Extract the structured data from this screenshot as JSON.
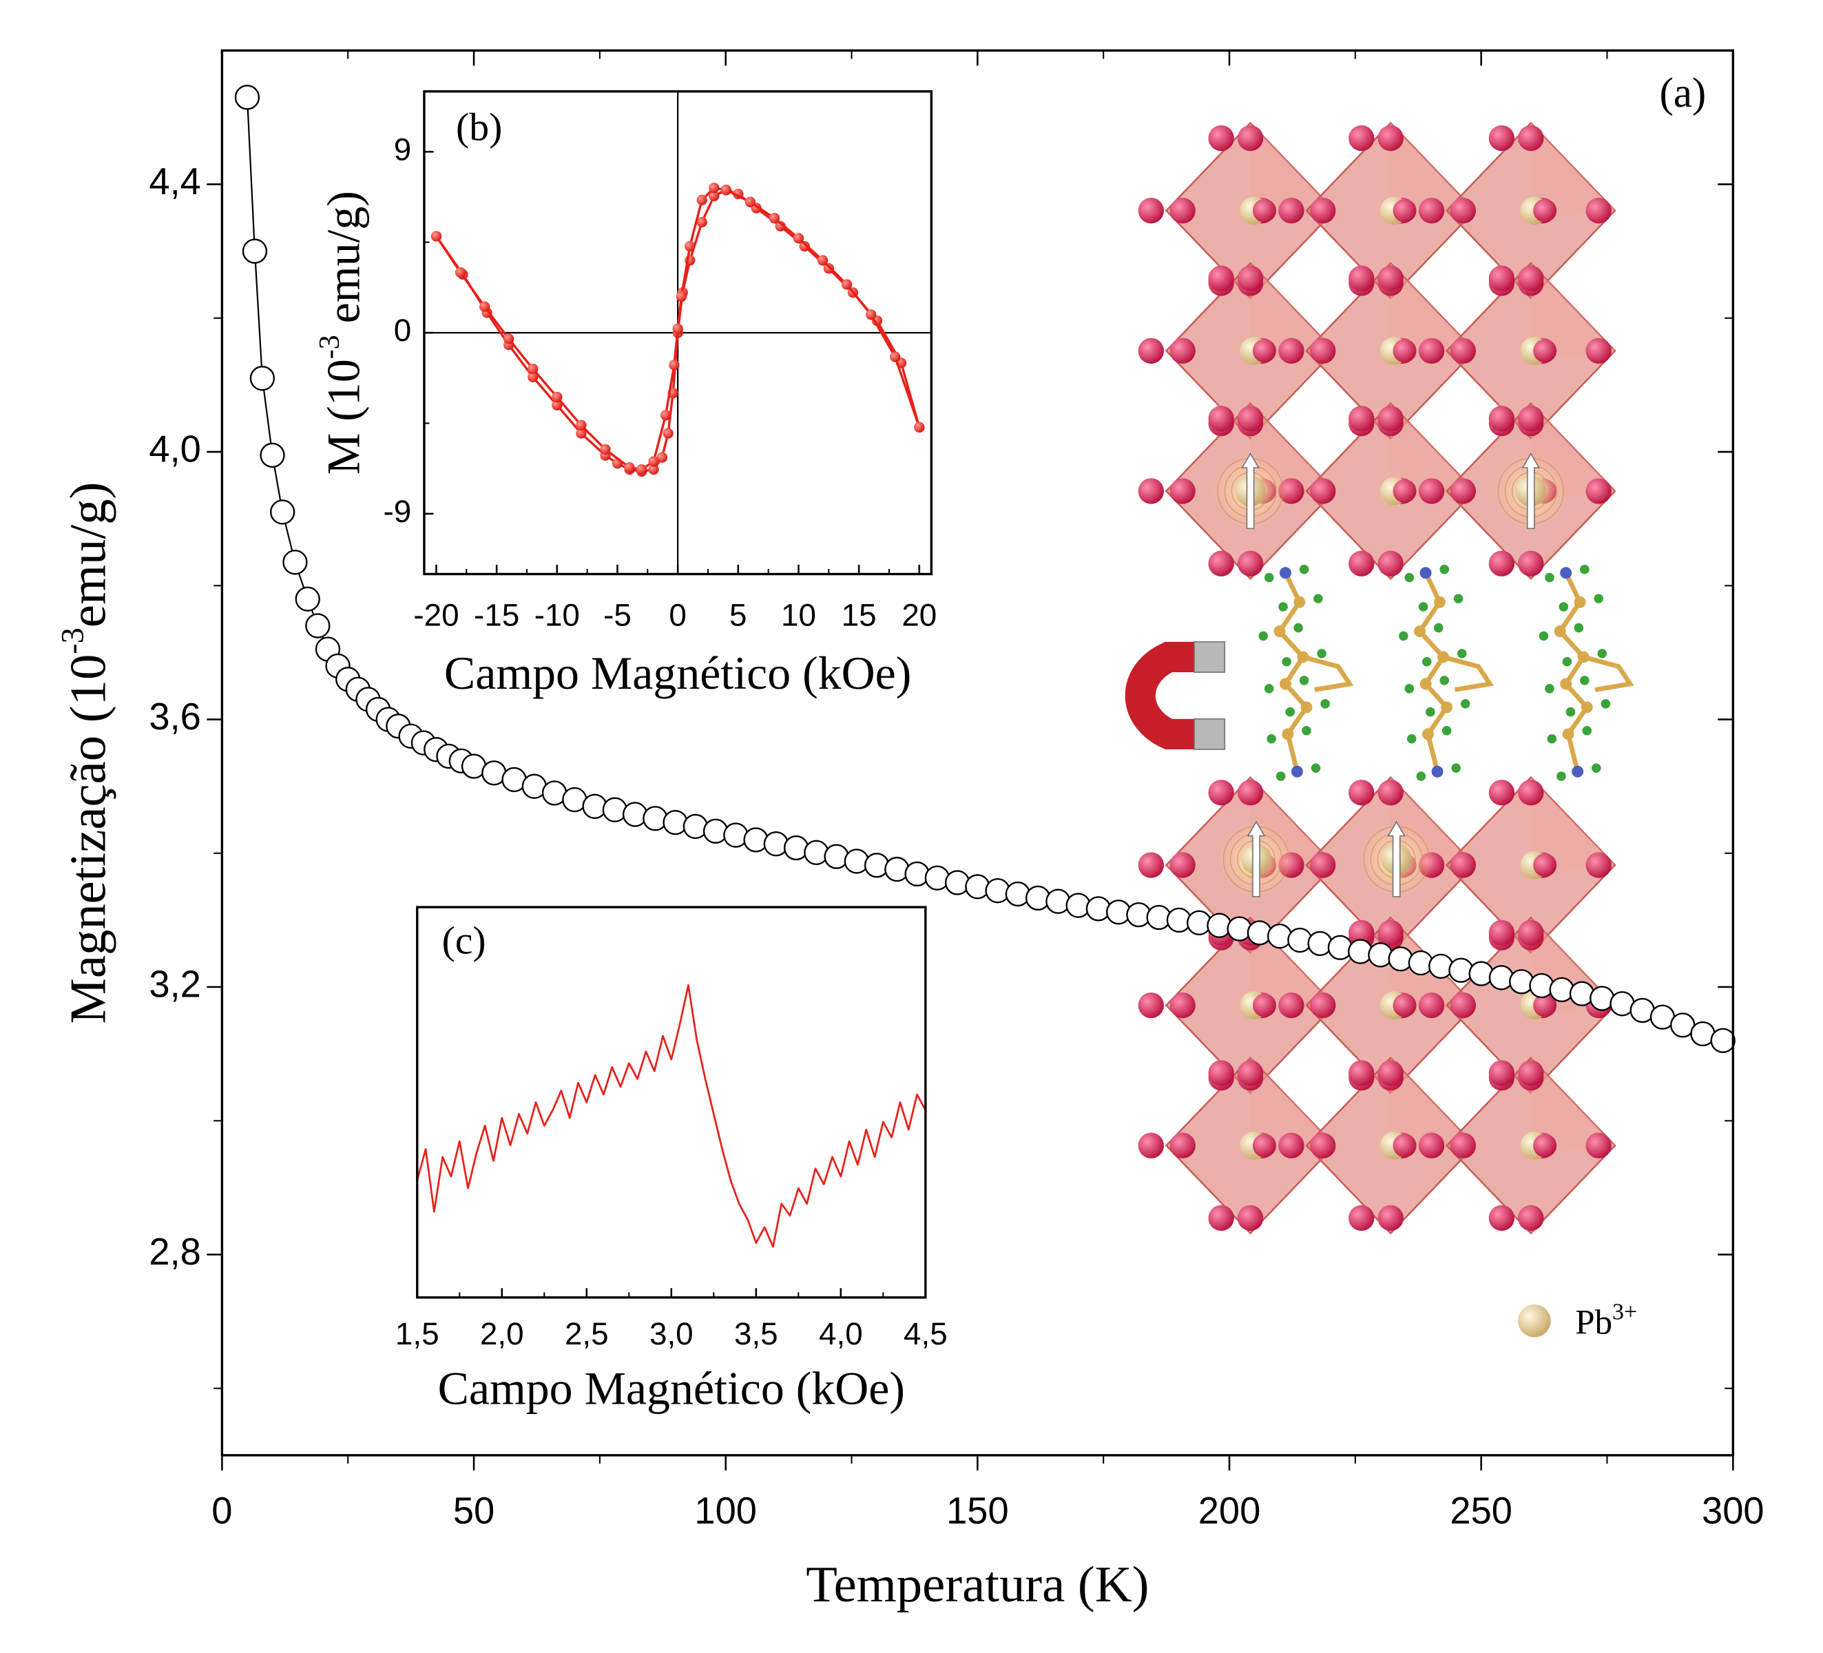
{
  "chart_data": [
    {
      "type": "scatter",
      "label": "(a)",
      "xlabel": "Temperatura (K)",
      "ylabel": [
        "Magnetização (10",
        "-3",
        "emu/g)"
      ],
      "color": "#000000",
      "marker_face": "#ffffff",
      "connect": true,
      "x": [
        5,
        6.5,
        8,
        10,
        12,
        14.5,
        17,
        19,
        21,
        23,
        25,
        27,
        29,
        31,
        33,
        35,
        37.5,
        40,
        42.5,
        45,
        47.5,
        50,
        54,
        58,
        62,
        66,
        70,
        74,
        78,
        82,
        86,
        90,
        94,
        98,
        102,
        106,
        110,
        114,
        118,
        122,
        126,
        130,
        134,
        138,
        142,
        146,
        150,
        154,
        158,
        162,
        166,
        170,
        174,
        178,
        182,
        186,
        190,
        194,
        198,
        202,
        206,
        210,
        214,
        218,
        222,
        226,
        230,
        234,
        238,
        242,
        246,
        250,
        254,
        258,
        262,
        266,
        270,
        274,
        278,
        282,
        286,
        290,
        294,
        298
      ],
      "values": [
        4.53,
        4.3,
        4.11,
        3.995,
        3.91,
        3.835,
        3.78,
        3.74,
        3.705,
        3.68,
        3.66,
        3.645,
        3.63,
        3.615,
        3.6,
        3.59,
        3.575,
        3.565,
        3.555,
        3.545,
        3.538,
        3.53,
        3.52,
        3.51,
        3.5,
        3.49,
        3.48,
        3.47,
        3.465,
        3.458,
        3.452,
        3.446,
        3.44,
        3.433,
        3.427,
        3.42,
        3.414,
        3.408,
        3.401,
        3.395,
        3.388,
        3.382,
        3.376,
        3.369,
        3.363,
        3.356,
        3.35,
        3.344,
        3.339,
        3.333,
        3.328,
        3.322,
        3.317,
        3.312,
        3.308,
        3.304,
        3.3,
        3.296,
        3.292,
        3.287,
        3.281,
        3.276,
        3.27,
        3.265,
        3.259,
        3.253,
        3.248,
        3.242,
        3.236,
        3.231,
        3.225,
        3.22,
        3.214,
        3.208,
        3.202,
        3.196,
        3.19,
        3.183,
        3.175,
        3.165,
        3.155,
        3.143,
        3.13,
        3.12
      ],
      "xlim": [
        0,
        300
      ],
      "ylim": [
        2.5,
        4.6
      ],
      "xticks": [
        0,
        50,
        100,
        150,
        200,
        250,
        300
      ],
      "yticks": [
        {
          "value": 2.8,
          "label": "2,8"
        },
        {
          "value": 3.2,
          "label": "3,2"
        },
        {
          "value": 3.6,
          "label": "3,6"
        },
        {
          "value": 4.0,
          "label": "4,0"
        },
        {
          "value": 4.4,
          "label": "4,4"
        }
      ]
    },
    {
      "type": "line",
      "label": "(b)",
      "xlabel": "Campo Magnético (kOe)",
      "ylabel": [
        "M (10",
        "-3",
        " emu/g)"
      ],
      "markers": true,
      "zero_lines": true,
      "series": [
        {
          "color": "#e8201a",
          "x": [
            -20,
            -17.8,
            -15.8,
            -14,
            -12,
            -10,
            -8,
            -6,
            -5,
            -4,
            -3,
            -2,
            -1.3,
            -0.8,
            -0.4,
            0,
            0.4,
            1,
            2,
            3,
            4,
            5,
            6.5,
            8.5,
            10.5,
            12.5,
            14.5,
            16.5,
            18.5,
            20
          ],
          "values": [
            4.8,
            2.9,
            1.0,
            -0.6,
            -2.2,
            -3.6,
            -5.0,
            -6.1,
            -6.5,
            -6.8,
            -6.9,
            -6.8,
            -6.2,
            -5.0,
            -3.0,
            0.0,
            2.0,
            3.6,
            5.5,
            6.8,
            7.1,
            6.9,
            6.2,
            5.3,
            4.3,
            3.2,
            2.0,
            0.6,
            -1.5,
            -4.7
          ]
        },
        {
          "color": "#e8201a",
          "x": [
            20,
            18,
            16,
            14,
            12,
            10,
            8,
            6,
            4,
            3,
            2,
            1,
            0.3,
            0,
            -0.3,
            -1,
            -2,
            -3,
            -4,
            -6,
            -8,
            -10,
            -12,
            -14,
            -16,
            -18,
            -20
          ],
          "values": [
            -4.7,
            -1.2,
            0.9,
            2.4,
            3.6,
            4.7,
            5.7,
            6.5,
            7.1,
            7.2,
            6.6,
            4.3,
            1.8,
            0.2,
            -1.6,
            -4.1,
            -6.4,
            -6.8,
            -6.7,
            -5.8,
            -4.6,
            -3.2,
            -1.8,
            -0.3,
            1.3,
            3.0,
            4.8
          ]
        }
      ],
      "xlim": [
        -21,
        21
      ],
      "ylim": [
        -12,
        12
      ],
      "xticks": [
        -20,
        -15,
        -10,
        -5,
        0,
        5,
        10,
        15,
        20
      ],
      "yticks": [
        -9,
        0,
        9
      ]
    },
    {
      "type": "line",
      "label": "(c)",
      "xlabel": "Campo Magnético (kOe)",
      "color": "#e8201a",
      "x": [
        1.5,
        1.55,
        1.6,
        1.65,
        1.7,
        1.75,
        1.8,
        1.85,
        1.9,
        1.95,
        2.0,
        2.05,
        2.1,
        2.15,
        2.2,
        2.25,
        2.3,
        2.35,
        2.4,
        2.45,
        2.5,
        2.55,
        2.6,
        2.65,
        2.7,
        2.75,
        2.8,
        2.85,
        2.9,
        2.95,
        3.0,
        3.05,
        3.1,
        3.15,
        3.2,
        3.25,
        3.3,
        3.35,
        3.4,
        3.45,
        3.5,
        3.55,
        3.6,
        3.65,
        3.7,
        3.75,
        3.8,
        3.85,
        3.9,
        3.95,
        4.0,
        4.05,
        4.1,
        4.15,
        4.2,
        4.25,
        4.3,
        4.35,
        4.4,
        4.45,
        4.5
      ],
      "values": [
        30,
        38,
        22,
        36,
        31,
        40,
        28,
        37,
        44,
        35,
        46,
        39,
        47,
        42,
        50,
        44,
        48,
        53,
        46,
        55,
        50,
        57,
        52,
        59,
        54,
        60,
        56,
        63,
        58,
        67,
        61,
        70,
        80,
        66,
        56,
        47,
        38,
        30,
        24,
        20,
        14,
        18,
        13,
        24,
        21,
        28,
        24,
        33,
        29,
        36,
        31,
        40,
        34,
        43,
        36,
        45,
        41,
        50,
        43,
        52,
        48
      ],
      "xlim": [
        1.5,
        4.5
      ],
      "ylim": [
        0,
        100
      ],
      "xticks": [
        {
          "value": 1.5,
          "label": "1,5"
        },
        {
          "value": 2.0,
          "label": "2,0"
        },
        {
          "value": 2.5,
          "label": "2,5"
        },
        {
          "value": 3.0,
          "label": "3,0"
        },
        {
          "value": 3.5,
          "label": "3,5"
        },
        {
          "value": 4.0,
          "label": "4,0"
        },
        {
          "value": 4.5,
          "label": "4,5"
        }
      ]
    }
  ],
  "structure_legend": [
    "Pb",
    "3+"
  ]
}
